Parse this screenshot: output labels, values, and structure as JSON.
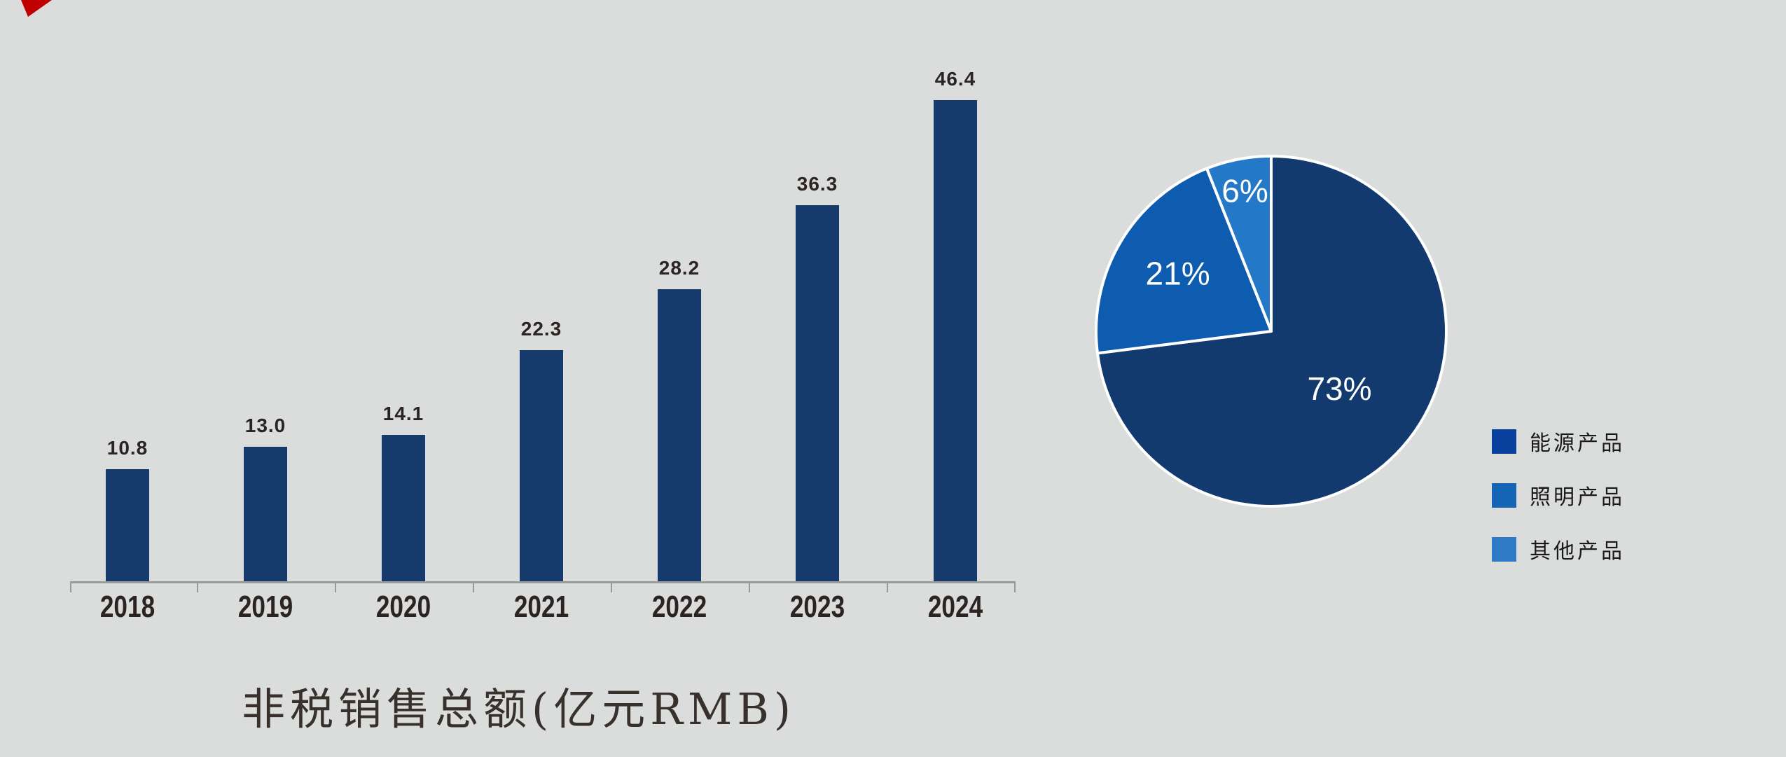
{
  "page": {
    "background": "#DBDDDC",
    "corner_mark_color": "#C00000"
  },
  "chart_data": [
    {
      "type": "bar",
      "title": "非税销售总额(亿元RMB)",
      "title_color": "#38302C",
      "categories": [
        "2018",
        "2019",
        "2020",
        "2021",
        "2022",
        "2023",
        "2024"
      ],
      "values": [
        10.8,
        13.0,
        14.1,
        22.3,
        28.2,
        36.3,
        46.4
      ],
      "value_labels": [
        "10.8",
        "13.0",
        "14.1",
        "22.3",
        "28.2",
        "36.3",
        "46.4"
      ],
      "unit": "亿元RMB",
      "bar_color": "#163A6C",
      "label_color": "#2B2422",
      "axis_color": "#9B9B9B",
      "grid": false,
      "ylim": [
        0,
        50
      ],
      "xlabel": "",
      "ylabel": ""
    },
    {
      "type": "pie",
      "slices": [
        {
          "label": "能源产品",
          "value": 73,
          "display": "73%",
          "color": "#123A6E",
          "legend_color": "#08409E"
        },
        {
          "label": "照明产品",
          "value": 21,
          "display": "21%",
          "color": "#0E5CB0",
          "legend_color": "#1565B6"
        },
        {
          "label": "其他产品",
          "value": 6,
          "display": "6%",
          "color": "#2478C8",
          "legend_color": "#2E7AC6"
        }
      ],
      "start_angle_deg_clockwise_from_top": 0,
      "label_text_color": "#FFFFFF",
      "stroke_color": "#FFFFFF",
      "legend_position": "right",
      "legend_text_color": "#1A1A1A"
    }
  ]
}
